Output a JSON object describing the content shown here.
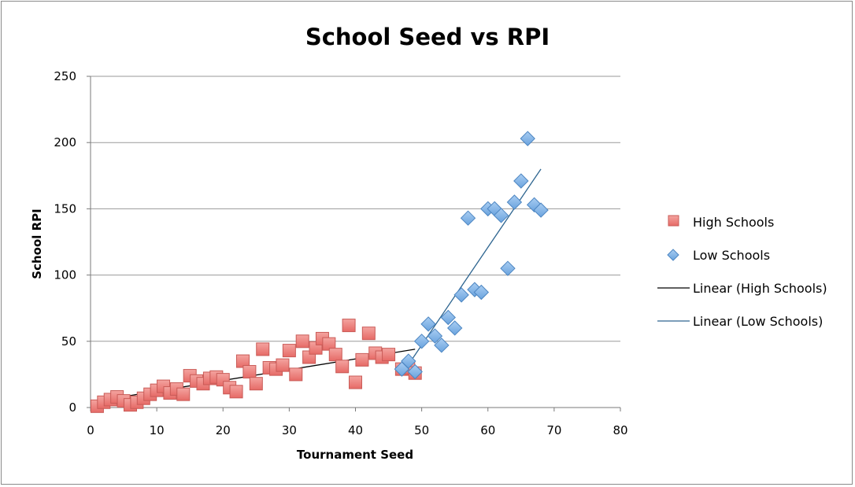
{
  "chart_data": {
    "type": "scatter",
    "title": "School Seed vs RPI",
    "xlabel": "Tournament Seed",
    "ylabel": "School RPI",
    "xlim": [
      0,
      80
    ],
    "ylim": [
      0,
      250
    ],
    "x_ticks": [
      "0",
      "10",
      "20",
      "30",
      "40",
      "50",
      "60",
      "70",
      "80"
    ],
    "y_ticks": [
      "0",
      "50",
      "100",
      "150",
      "200",
      "250"
    ],
    "grid": "horizontal",
    "legend_position": "right",
    "series": [
      {
        "name": "High Schools",
        "marker": "square",
        "color": "#e8736f",
        "points": [
          [
            1,
            1
          ],
          [
            2,
            4
          ],
          [
            3,
            6
          ],
          [
            4,
            8
          ],
          [
            5,
            5
          ],
          [
            6,
            2
          ],
          [
            7,
            4
          ],
          [
            8,
            7
          ],
          [
            9,
            10
          ],
          [
            10,
            13
          ],
          [
            11,
            16
          ],
          [
            12,
            11
          ],
          [
            13,
            14
          ],
          [
            14,
            10
          ],
          [
            15,
            24
          ],
          [
            16,
            20
          ],
          [
            17,
            18
          ],
          [
            18,
            22
          ],
          [
            19,
            23
          ],
          [
            20,
            21
          ],
          [
            21,
            15
          ],
          [
            22,
            12
          ],
          [
            23,
            35
          ],
          [
            24,
            27
          ],
          [
            25,
            18
          ],
          [
            26,
            44
          ],
          [
            27,
            30
          ],
          [
            28,
            29
          ],
          [
            29,
            32
          ],
          [
            30,
            43
          ],
          [
            31,
            25
          ],
          [
            32,
            50
          ],
          [
            33,
            38
          ],
          [
            34,
            45
          ],
          [
            35,
            52
          ],
          [
            36,
            48
          ],
          [
            37,
            40
          ],
          [
            38,
            31
          ],
          [
            39,
            62
          ],
          [
            40,
            19
          ],
          [
            41,
            36
          ],
          [
            42,
            56
          ],
          [
            43,
            41
          ],
          [
            44,
            38
          ],
          [
            45,
            40
          ],
          [
            47,
            29
          ],
          [
            48,
            30
          ],
          [
            49,
            26
          ]
        ]
      },
      {
        "name": "Low Schools",
        "marker": "diamond",
        "color": "#7eb2e6",
        "points": [
          [
            47,
            29
          ],
          [
            48,
            35
          ],
          [
            49,
            27
          ],
          [
            50,
            50
          ],
          [
            51,
            63
          ],
          [
            52,
            54
          ],
          [
            53,
            47
          ],
          [
            54,
            68
          ],
          [
            55,
            60
          ],
          [
            56,
            85
          ],
          [
            57,
            143
          ],
          [
            58,
            89
          ],
          [
            59,
            87
          ],
          [
            60,
            150
          ],
          [
            61,
            150
          ],
          [
            62,
            145
          ],
          [
            63,
            105
          ],
          [
            64,
            155
          ],
          [
            65,
            171
          ],
          [
            66,
            203
          ],
          [
            67,
            153
          ],
          [
            68,
            149
          ]
        ]
      },
      {
        "name": "Linear (High Schools)",
        "type": "line",
        "color": "#000000",
        "points": [
          [
            1,
            5
          ],
          [
            49,
            44
          ]
        ]
      },
      {
        "name": "Linear (Low Schools)",
        "type": "line",
        "color": "#2e6590",
        "points": [
          [
            47,
            25
          ],
          [
            68,
            180
          ]
        ]
      }
    ]
  }
}
